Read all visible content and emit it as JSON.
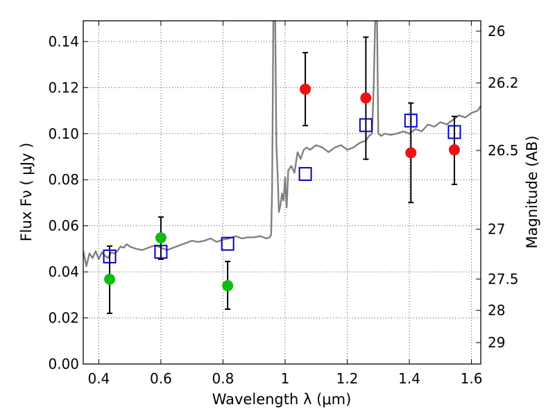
{
  "chart_data": {
    "type": "scatter",
    "xlabel": "Wavelength  λ (μm)",
    "ylabel": "Flux  Fν  ( μJy )",
    "y2label": "Magnitude (AB)",
    "xlim": [
      0.35,
      1.63
    ],
    "ylim": [
      0.0,
      0.149
    ],
    "grid": true,
    "xticks": [
      0.4,
      0.6,
      0.8,
      1.0,
      1.2,
      1.4,
      1.6
    ],
    "xtick_labels": [
      "0.4",
      "0.6",
      "0.8",
      "1",
      "1.2",
      "1.4",
      "1.6"
    ],
    "yticks": [
      0.0,
      0.02,
      0.04,
      0.06,
      0.08,
      0.1,
      0.12,
      0.14
    ],
    "ytick_labels": [
      "0.00",
      "0.02",
      "0.04",
      "0.06",
      "0.08",
      "0.10",
      "0.12",
      "0.14"
    ],
    "right_ticks": [
      {
        "label": "26",
        "flux": 0.1445
      },
      {
        "label": "26.2",
        "flux": 0.122
      },
      {
        "label": "26.5",
        "flux": 0.0927
      },
      {
        "label": "27",
        "flux": 0.0585
      },
      {
        "label": "27.5",
        "flux": 0.0369
      },
      {
        "label": "28",
        "flux": 0.0233
      },
      {
        "label": "29",
        "flux": 0.0093
      }
    ],
    "colors": {
      "model": "#808080",
      "green": "#11bb11",
      "red": "#ee1111",
      "square": "#0000cc",
      "errorbar": "#000000"
    },
    "series": [
      {
        "name": "model spectrum",
        "kind": "line",
        "x": [
          0.35,
          0.36,
          0.37,
          0.38,
          0.39,
          0.4,
          0.41,
          0.42,
          0.43,
          0.44,
          0.45,
          0.46,
          0.47,
          0.48,
          0.49,
          0.5,
          0.52,
          0.54,
          0.56,
          0.58,
          0.6,
          0.62,
          0.64,
          0.66,
          0.68,
          0.7,
          0.72,
          0.74,
          0.76,
          0.78,
          0.8,
          0.82,
          0.84,
          0.86,
          0.88,
          0.9,
          0.92,
          0.94,
          0.95,
          0.955,
          0.958,
          0.962,
          0.965,
          0.968,
          0.972,
          0.976,
          0.98,
          0.985,
          0.99,
          0.995,
          1.0,
          1.005,
          1.01,
          1.02,
          1.03,
          1.04,
          1.05,
          1.06,
          1.07,
          1.08,
          1.1,
          1.12,
          1.14,
          1.16,
          1.18,
          1.2,
          1.22,
          1.24,
          1.26,
          1.27,
          1.28,
          1.285,
          1.29,
          1.293,
          1.296,
          1.3,
          1.31,
          1.32,
          1.34,
          1.36,
          1.38,
          1.4,
          1.42,
          1.44,
          1.46,
          1.48,
          1.5,
          1.52,
          1.54,
          1.56,
          1.58,
          1.6,
          1.62,
          1.63
        ],
        "y": [
          0.049,
          0.0425,
          0.048,
          0.046,
          0.049,
          0.0455,
          0.0485,
          0.047,
          0.046,
          0.0485,
          0.048,
          0.049,
          0.051,
          0.0505,
          0.052,
          0.051,
          0.05,
          0.0495,
          0.0505,
          0.0515,
          0.0505,
          0.0495,
          0.0505,
          0.0515,
          0.0525,
          0.0535,
          0.053,
          0.0535,
          0.0545,
          0.053,
          0.054,
          0.0545,
          0.0555,
          0.0545,
          0.055,
          0.055,
          0.0555,
          0.0545,
          0.055,
          0.056,
          0.075,
          0.149,
          0.149,
          0.149,
          0.095,
          0.082,
          0.066,
          0.069,
          0.074,
          0.071,
          0.081,
          0.068,
          0.084,
          0.086,
          0.083,
          0.092,
          0.089,
          0.093,
          0.094,
          0.093,
          0.095,
          0.094,
          0.092,
          0.094,
          0.095,
          0.093,
          0.094,
          0.096,
          0.097,
          0.099,
          0.1,
          0.12,
          0.149,
          0.149,
          0.149,
          0.1,
          0.099,
          0.1,
          0.0995,
          0.1,
          0.101,
          0.1,
          0.102,
          0.101,
          0.104,
          0.103,
          0.105,
          0.104,
          0.106,
          0.108,
          0.107,
          0.109,
          0.11,
          0.112
        ]
      },
      {
        "name": "model photometry",
        "kind": "open-square",
        "x": [
          0.435,
          0.6,
          0.815,
          1.065,
          1.26,
          1.405,
          1.545
        ],
        "y": [
          0.0467,
          0.0487,
          0.0522,
          0.0825,
          0.1037,
          0.1057,
          0.1007
        ]
      },
      {
        "name": "observed (green)",
        "kind": "filled-circle",
        "x": [
          0.435,
          0.6,
          0.815
        ],
        "y": [
          0.0368,
          0.0548,
          0.034
        ],
        "yerr": [
          [
            0.022,
            0.0512
          ],
          [
            0.0455,
            0.0638
          ],
          [
            0.0238,
            0.0445
          ]
        ]
      },
      {
        "name": "observed (red)",
        "kind": "filled-circle",
        "x": [
          1.065,
          1.26,
          1.405,
          1.545
        ],
        "y": [
          0.1193,
          0.1155,
          0.0917,
          0.093
        ],
        "yerr": [
          [
            0.1035,
            0.1352
          ],
          [
            0.0889,
            0.1419
          ],
          [
            0.0701,
            0.1133
          ],
          [
            0.078,
            0.1075
          ]
        ]
      }
    ]
  }
}
